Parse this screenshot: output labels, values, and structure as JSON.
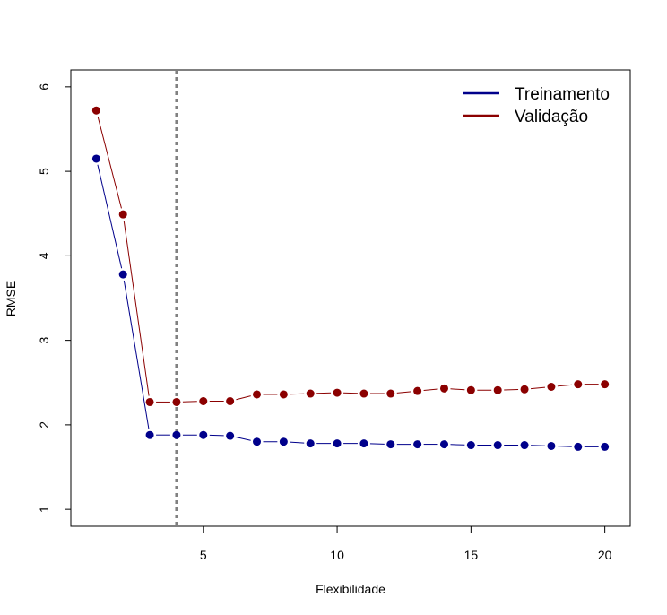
{
  "chart_data": {
    "type": "line",
    "title": "",
    "xlabel": "Flexibilidade",
    "ylabel": "RMSE",
    "xlim": [
      0.05,
      20.95
    ],
    "ylim": [
      0.8,
      6.2
    ],
    "x_ticks": [
      "5",
      "10",
      "15",
      "20"
    ],
    "y_ticks": [
      "1",
      "2",
      "3",
      "4",
      "5",
      "6"
    ],
    "vline": 4,
    "legend_position": "top-right",
    "grid": false,
    "x": [
      1,
      2,
      3,
      4,
      5,
      6,
      7,
      8,
      9,
      10,
      11,
      12,
      13,
      14,
      15,
      16,
      17,
      18,
      19,
      20
    ],
    "series": [
      {
        "name": "Treinamento",
        "color": "#00008B",
        "values": [
          5.15,
          3.78,
          1.88,
          1.88,
          1.88,
          1.87,
          1.8,
          1.8,
          1.78,
          1.78,
          1.78,
          1.77,
          1.77,
          1.77,
          1.76,
          1.76,
          1.76,
          1.75,
          1.74,
          1.74
        ]
      },
      {
        "name": "Validação",
        "color": "#8B0000",
        "values": [
          5.72,
          4.49,
          2.27,
          2.27,
          2.28,
          2.28,
          2.36,
          2.36,
          2.37,
          2.38,
          2.37,
          2.37,
          2.4,
          2.43,
          2.41,
          2.41,
          2.42,
          2.45,
          2.48,
          2.48
        ]
      }
    ]
  }
}
